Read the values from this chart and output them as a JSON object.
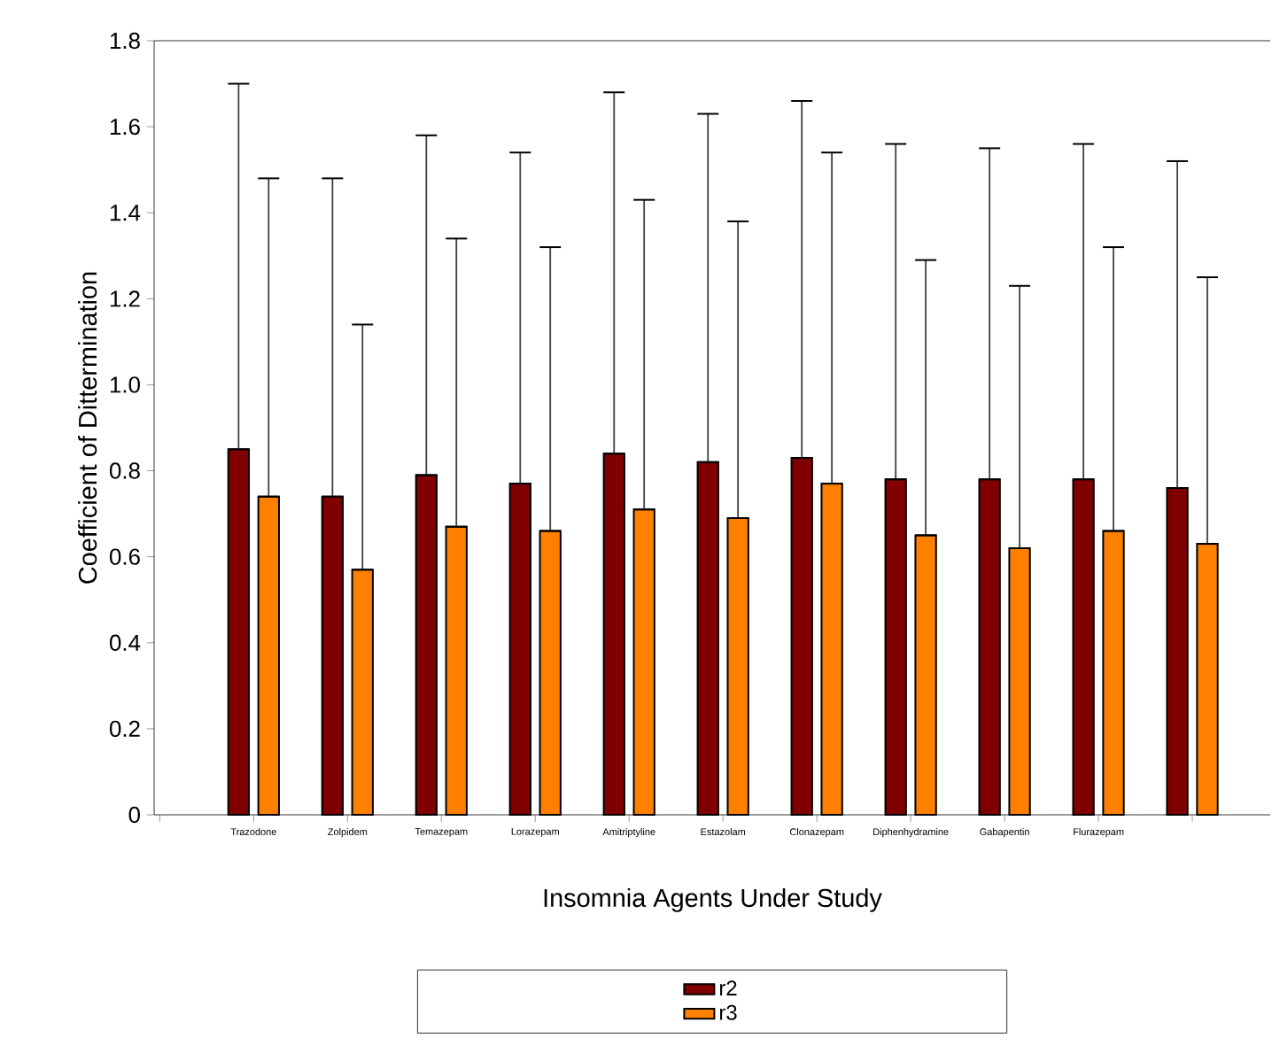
{
  "chart_data": {
    "type": "bar",
    "xlabel": "Insomnia Agents Under Study",
    "ylabel": "Coefficient of Dittermination",
    "categories": [
      "Trazodone",
      "Zolpidem",
      "Temazepam",
      "Lorazepam",
      "Amitriptyline",
      "Estazolam",
      "Clonazepam",
      "Diphenhydramine",
      "Gabapentin",
      "Flurazepam",
      null
    ],
    "series": [
      {
        "name": "r2",
        "color": "#800000",
        "values": [
          0.85,
          0.74,
          0.79,
          0.77,
          0.84,
          0.82,
          0.83,
          0.78,
          0.78,
          0.78,
          0.76
        ],
        "errors": [
          [
            0.85,
            1.7
          ],
          [
            0.74,
            1.48
          ],
          [
            0.79,
            1.58
          ],
          [
            0.77,
            1.54
          ],
          [
            0.84,
            1.68
          ],
          [
            0.82,
            1.63
          ],
          [
            0.83,
            1.66
          ],
          [
            0.78,
            1.56
          ],
          [
            0.78,
            1.55
          ],
          [
            0.78,
            1.56
          ],
          [
            0.76,
            1.52
          ]
        ]
      },
      {
        "name": "r3",
        "color": "#ff8000",
        "values": [
          0.74,
          0.57,
          0.67,
          0.66,
          0.71,
          0.69,
          0.77,
          0.65,
          0.62,
          0.66,
          0.63
        ],
        "errors": [
          [
            0.74,
            1.48
          ],
          [
            0.57,
            1.14
          ],
          [
            0.67,
            1.34
          ],
          [
            0.66,
            1.32
          ],
          [
            0.71,
            1.43
          ],
          [
            0.69,
            1.38
          ],
          [
            0.77,
            1.54
          ],
          [
            0.65,
            1.29
          ],
          [
            0.62,
            1.23
          ],
          [
            0.66,
            1.32
          ],
          [
            0.63,
            1.25
          ]
        ]
      }
    ],
    "ylim": [
      0,
      1.8
    ],
    "yticks": [
      0,
      {
        "value": 0.2,
        "label": "0.2"
      },
      {
        "value": 0.4,
        "label": "0.4"
      },
      {
        "value": 0.6,
        "label": "0.6"
      },
      {
        "value": 0.8,
        "label": "0.8"
      },
      {
        "value": 1.0,
        "label": "1.0"
      },
      {
        "value": 1.2,
        "label": "1.2"
      },
      {
        "value": 1.4,
        "label": "1.4"
      },
      {
        "value": 1.6,
        "label": "1.6"
      },
      {
        "value": 1.8,
        "label": "1.8"
      }
    ],
    "grid": false,
    "legend": "bottom"
  }
}
